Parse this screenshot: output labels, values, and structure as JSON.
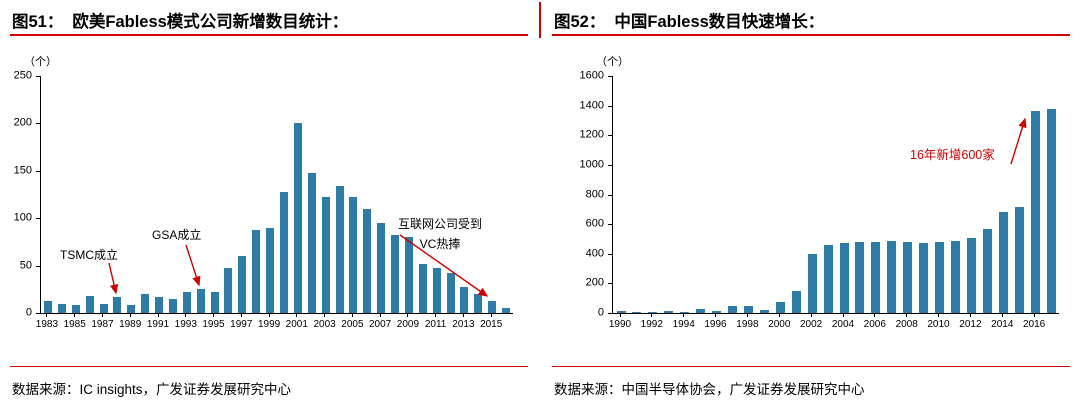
{
  "panels": [
    {
      "fig_label": "图51：",
      "title": "欧美Fabless模式公司新增数目统计：",
      "source": "数据来源：IC insights，广发证券发展研究中心"
    },
    {
      "fig_label": "图52：",
      "title": "中国Fabless数目快速增长：",
      "source": "数据来源：中国半导体协会，广发证券发展研究中心"
    }
  ],
  "colors": {
    "bar": "#2e7ba6",
    "accent_red": "#d00000",
    "axis": "#000000"
  },
  "chart_data": [
    {
      "type": "bar",
      "title": "欧美Fabless模式公司新增数目统计",
      "xlabel": "",
      "ylabel": "（个）",
      "ylim": [
        0,
        250
      ],
      "ytick_step": 50,
      "grid": false,
      "legend": false,
      "categories": [
        1983,
        1984,
        1985,
        1986,
        1987,
        1988,
        1989,
        1990,
        1991,
        1992,
        1993,
        1994,
        1995,
        1996,
        1997,
        1998,
        1999,
        2000,
        2001,
        2002,
        2003,
        2004,
        2005,
        2006,
        2007,
        2008,
        2009,
        2010,
        2011,
        2012,
        2013,
        2014,
        2015,
        2016
      ],
      "values": [
        13,
        10,
        8,
        18,
        10,
        17,
        8,
        20,
        17,
        15,
        22,
        25,
        22,
        48,
        60,
        88,
        90,
        128,
        200,
        148,
        122,
        134,
        122,
        110,
        95,
        82,
        80,
        52,
        48,
        42,
        28,
        20,
        13,
        5
      ],
      "xticks": [
        1983,
        1985,
        1987,
        1989,
        1991,
        1993,
        1995,
        1997,
        1999,
        2001,
        2003,
        2005,
        2007,
        2009,
        2011,
        2013,
        2015
      ],
      "annotations": [
        {
          "text": "TSMC成立",
          "points_to": 1988
        },
        {
          "text": "GSA成立",
          "points_to": 1994
        },
        {
          "text": "互联网公司受到VC热捧",
          "points_to": 2015
        }
      ]
    },
    {
      "type": "bar",
      "title": "中国Fabless数目快速增长",
      "xlabel": "",
      "ylabel": "（个）",
      "ylim": [
        0,
        1600
      ],
      "ytick_step": 200,
      "grid": false,
      "legend": false,
      "categories": [
        1990,
        1991,
        1992,
        1993,
        1994,
        1995,
        1996,
        1997,
        1998,
        1999,
        2000,
        2001,
        2002,
        2003,
        2004,
        2005,
        2006,
        2007,
        2008,
        2009,
        2010,
        2011,
        2012,
        2013,
        2014,
        2015,
        2016,
        2017
      ],
      "values": [
        15,
        8,
        10,
        15,
        8,
        25,
        12,
        45,
        50,
        18,
        75,
        150,
        400,
        460,
        470,
        480,
        480,
        485,
        480,
        475,
        480,
        485,
        510,
        570,
        680,
        715,
        1362,
        1380
      ],
      "xticks": [
        1990,
        1992,
        1994,
        1996,
        1998,
        2000,
        2002,
        2004,
        2006,
        2008,
        2010,
        2012,
        2014,
        2016
      ],
      "annotations": [
        {
          "text": "16年新增600家",
          "points_to": 2016
        }
      ]
    }
  ]
}
